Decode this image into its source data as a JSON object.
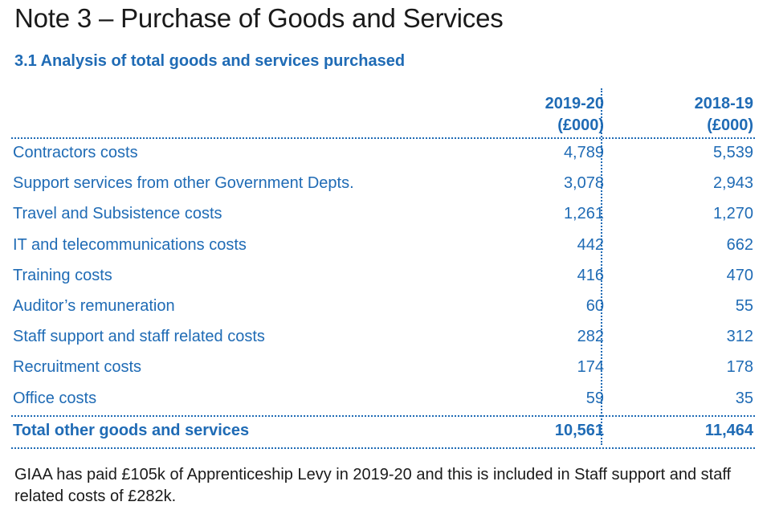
{
  "title": "Note 3 – Purchase of Goods and Services",
  "subtitle": "3.1  Analysis of total goods and services purchased",
  "table": {
    "headers": [
      {
        "year": "2019-20",
        "unit": "(£000)"
      },
      {
        "year": "2018-19",
        "unit": "(£000)"
      }
    ],
    "rows": [
      {
        "label": "Contractors costs",
        "v1": "4,789",
        "v2": "5,539"
      },
      {
        "label": "Support services from other Government Depts.",
        "v1": "3,078",
        "v2": "2,943"
      },
      {
        "label": "Travel and Subsistence costs",
        "v1": "1,261",
        "v2": "1,270"
      },
      {
        "label": "IT and telecommunications costs",
        "v1": "442",
        "v2": "662"
      },
      {
        "label": "Training costs",
        "v1": "416",
        "v2": "470"
      },
      {
        "label": "Auditor’s remuneration",
        "v1": "60",
        "v2": "55"
      },
      {
        "label": "Staff support and staff related costs",
        "v1": "282",
        "v2": "312"
      },
      {
        "label": "Recruitment costs",
        "v1": "174",
        "v2": "178"
      },
      {
        "label": "Office costs",
        "v1": "59",
        "v2": "35"
      }
    ],
    "total": {
      "label": "Total other goods and services",
      "v1": "10,561",
      "v2": "11,464"
    }
  },
  "note": "GIAA has paid £105k of Apprenticeship Levy in 2019-20 and this is included in Staff support and staff related costs of £282k.",
  "colors": {
    "accent": "#1f6bb5",
    "text": "#1a1a1a"
  }
}
